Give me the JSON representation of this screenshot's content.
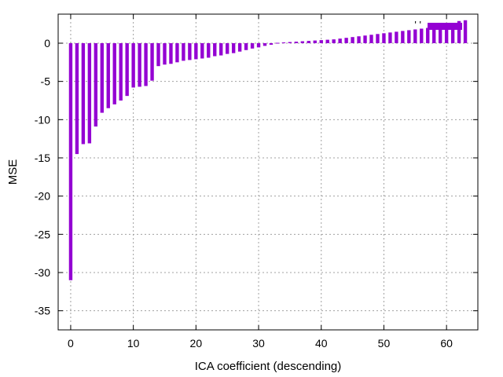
{
  "chart_data": {
    "type": "bar",
    "title": "",
    "xlabel": "ICA coefficient (descending)",
    "ylabel": "MSE",
    "xlim": [
      -2,
      65
    ],
    "ylim": [
      -37.5,
      3.8
    ],
    "xticks": [
      0,
      10,
      20,
      30,
      40,
      50,
      60
    ],
    "yticks": [
      0,
      -5,
      -10,
      -15,
      -20,
      -25,
      -30,
      -35
    ],
    "grid": true,
    "legend": {
      "placement": "top-right",
      "entries": [
        {
          "label": "' '",
          "color": "#9400D3"
        }
      ]
    },
    "series": [
      {
        "color": "#9400D3",
        "x": [
          0,
          1,
          2,
          3,
          4,
          5,
          6,
          7,
          8,
          9,
          10,
          11,
          12,
          13,
          14,
          15,
          16,
          17,
          18,
          19,
          20,
          21,
          22,
          23,
          24,
          25,
          26,
          27,
          28,
          29,
          30,
          31,
          32,
          33,
          34,
          35,
          36,
          37,
          38,
          39,
          40,
          41,
          42,
          43,
          44,
          45,
          46,
          47,
          48,
          49,
          50,
          51,
          52,
          53,
          54,
          55,
          56,
          57,
          58,
          59,
          60,
          61,
          62,
          63
        ],
        "values": [
          -31.0,
          -14.5,
          -13.2,
          -13.1,
          -10.9,
          -9.1,
          -8.5,
          -8.0,
          -7.5,
          -6.9,
          -5.8,
          -5.7,
          -5.6,
          -4.9,
          -3.0,
          -2.8,
          -2.7,
          -2.5,
          -2.3,
          -2.2,
          -2.1,
          -2.0,
          -1.9,
          -1.7,
          -1.6,
          -1.4,
          -1.3,
          -1.1,
          -0.9,
          -0.7,
          -0.55,
          -0.35,
          -0.2,
          0.05,
          0.1,
          0.15,
          0.2,
          0.25,
          0.3,
          0.35,
          0.4,
          0.45,
          0.5,
          0.6,
          0.7,
          0.8,
          0.9,
          1.0,
          1.1,
          1.2,
          1.3,
          1.4,
          1.5,
          1.6,
          1.7,
          1.8,
          1.9,
          2.0,
          2.1,
          2.2,
          2.3,
          2.4,
          2.9,
          3.0
        ]
      }
    ]
  }
}
